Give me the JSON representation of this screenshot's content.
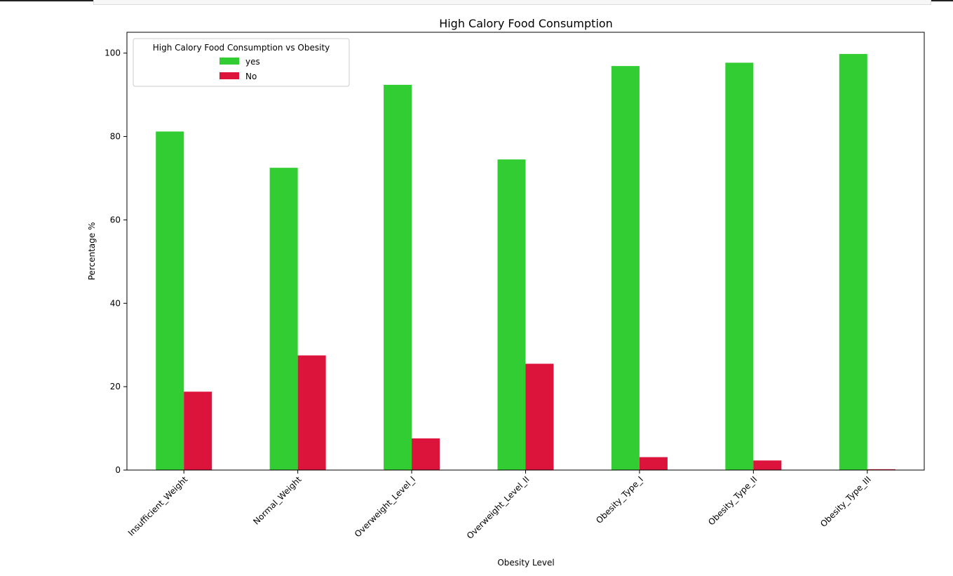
{
  "chart_data": {
    "type": "bar",
    "title": "High Calory Food Consumption",
    "xlabel": "Obesity Level",
    "ylabel": "Percentage %",
    "categories": [
      "Insufficient_Weight",
      "Normal_Weight",
      "Overweight_Level_I",
      "Overweight_Level_II",
      "Obesity_Type_I",
      "Obesity_Type_II",
      "Obesity_Type_III"
    ],
    "series": [
      {
        "name": "yes",
        "color": "#32cd32",
        "values": [
          81.2,
          72.5,
          92.4,
          74.5,
          96.9,
          97.7,
          99.8
        ]
      },
      {
        "name": "No",
        "color": "#dc143c",
        "values": [
          18.8,
          27.5,
          7.6,
          25.5,
          3.1,
          2.3,
          0.2
        ]
      }
    ],
    "ylim": [
      0,
      105
    ],
    "yticks": [
      0,
      20,
      40,
      60,
      80,
      100
    ],
    "grid": false,
    "legend": {
      "title": "High Calory Food Consumption vs Obesity",
      "placement": "top-left"
    }
  }
}
